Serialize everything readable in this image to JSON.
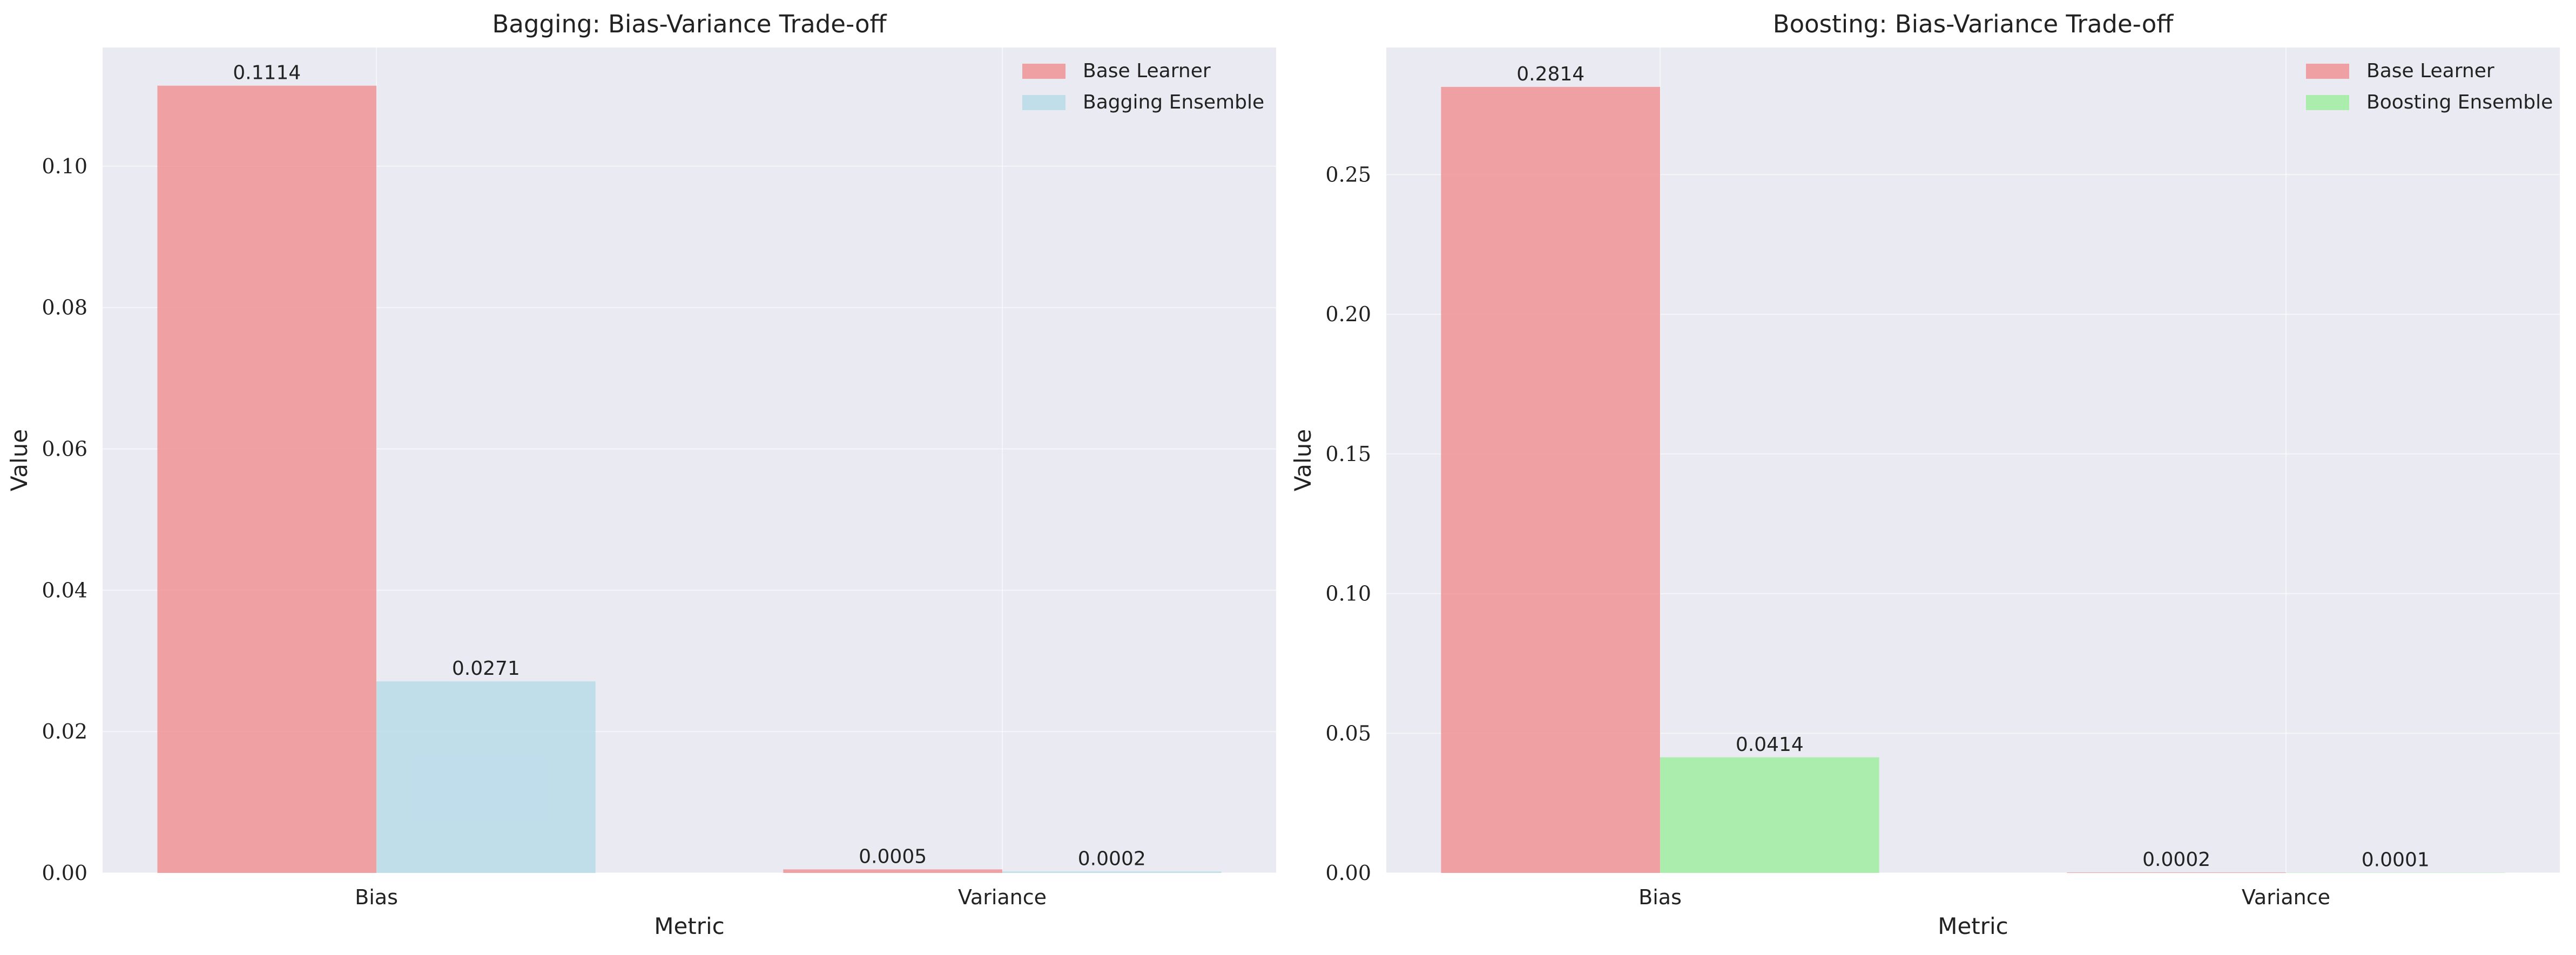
{
  "chart_data": [
    {
      "type": "bar",
      "title": "Bagging: Bias-Variance Trade-off",
      "xlabel": "Metric",
      "ylabel": "Value",
      "categories": [
        "Bias",
        "Variance"
      ],
      "series": [
        {
          "name": "Base Learner",
          "values": [
            0.1114,
            0.0005
          ],
          "labels": [
            "0.1114",
            "0.0005"
          ],
          "color": "#f08080"
        },
        {
          "name": "Bagging Ensemble",
          "values": [
            0.0271,
            0.0002
          ],
          "labels": [
            "0.0271",
            "0.0002"
          ],
          "color": "#add8e6"
        }
      ],
      "ylim": [
        0,
        0.1168
      ],
      "yticks": [
        0.0,
        0.02,
        0.04,
        0.06,
        0.08,
        0.1
      ],
      "ytick_labels": [
        "0.00",
        "0.02",
        "0.04",
        "0.06",
        "0.08",
        "0.10"
      ],
      "grid": true,
      "legend_position": "top-right",
      "background": "#eaeaf2"
    },
    {
      "type": "bar",
      "title": "Boosting: Bias-Variance Trade-off",
      "xlabel": "Metric",
      "ylabel": "Value",
      "categories": [
        "Bias",
        "Variance"
      ],
      "series": [
        {
          "name": "Base Learner",
          "values": [
            0.2814,
            0.0002
          ],
          "labels": [
            "0.2814",
            "0.0002"
          ],
          "color": "#f08080"
        },
        {
          "name": "Boosting Ensemble",
          "values": [
            0.0414,
            0.0001
          ],
          "labels": [
            "0.0414",
            "0.0001"
          ],
          "color": "#90ee90"
        }
      ],
      "ylim": [
        0,
        0.2955
      ],
      "yticks": [
        0.0,
        0.05,
        0.1,
        0.15,
        0.2,
        0.25
      ],
      "ytick_labels": [
        "0.00",
        "0.05",
        "0.10",
        "0.15",
        "0.20",
        "0.25"
      ],
      "grid": true,
      "legend_position": "top-right",
      "background": "#eaeaf2"
    }
  ]
}
